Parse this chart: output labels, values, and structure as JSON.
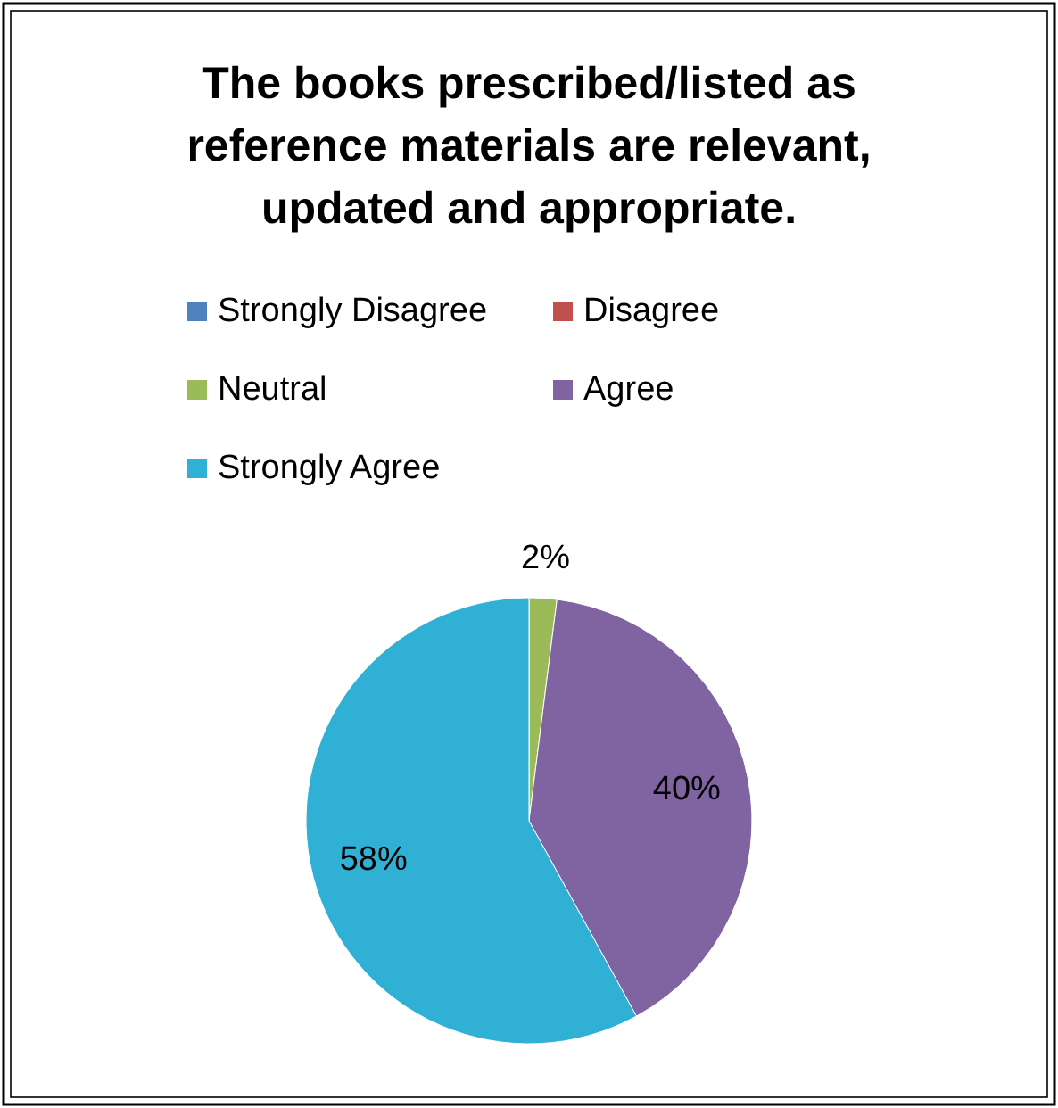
{
  "chart_data": {
    "type": "pie",
    "title": "The books prescribed/listed as reference materials are relevant, updated and appropriate.",
    "categories": [
      "Strongly Disagree",
      "Disagree",
      "Neutral",
      "Agree",
      "Strongly Agree"
    ],
    "values": [
      0,
      0,
      2,
      40,
      58
    ],
    "colors": [
      "#4f81bd",
      "#c0504d",
      "#9bbb59",
      "#8064a2",
      "#31b0d5"
    ],
    "value_labels": [
      null,
      null,
      "2%",
      "40%",
      "58%"
    ],
    "legend": "top"
  }
}
